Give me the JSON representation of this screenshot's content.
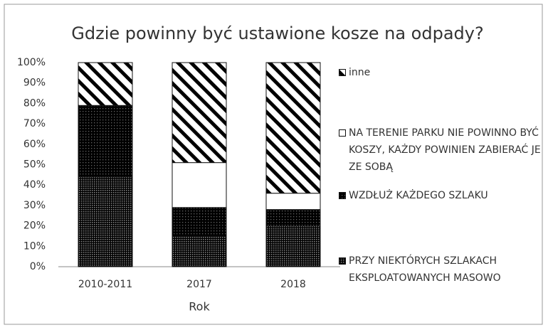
{
  "chart_data": {
    "type": "stacked_bar",
    "title": "Gdzie powinny być ustawione kosze na odpady?",
    "x_label": "Rok",
    "categories": [
      "2010-2011",
      "2017",
      "2018"
    ],
    "series": [
      {
        "name": "PRZY NIEKTÓRYCH SZLAKACH EKSPLOATOWANYCH MASOWO",
        "color": "#c8c8c8",
        "pattern": "dots",
        "values": [
          44,
          15,
          20
        ]
      },
      {
        "name": "WZDŁUŻ KAŻDEGO SZLAKU",
        "color": "#1e1e1e",
        "pattern": "dark-dots",
        "values": [
          35,
          14,
          8
        ]
      },
      {
        "name": "NA TERENIE PARKU NIE POWINNO BYĆ KOSZY, KAŻDY POWINIEN ZABIERAĆ JE ZE SOBĄ",
        "color": "#ffffff",
        "pattern": "solid",
        "values": [
          0,
          22,
          8
        ]
      },
      {
        "name": "inne",
        "color": "#1e1e1e",
        "pattern": "hatch",
        "values": [
          21,
          49,
          64
        ]
      }
    ],
    "ylim": [
      0,
      100
    ],
    "yticks": [
      {
        "value": 0,
        "label": "0%"
      },
      {
        "value": 10,
        "label": "10%"
      },
      {
        "value": 20,
        "label": "20%"
      },
      {
        "value": 30,
        "label": "30%"
      },
      {
        "value": 40,
        "label": "40%"
      },
      {
        "value": 50,
        "label": "50%"
      },
      {
        "value": 60,
        "label": "60%"
      },
      {
        "value": 70,
        "label": "70%"
      },
      {
        "value": 80,
        "label": "80%"
      },
      {
        "value": 90,
        "label": "90%"
      },
      {
        "value": 100,
        "label": "100%"
      }
    ],
    "legend": "right"
  }
}
